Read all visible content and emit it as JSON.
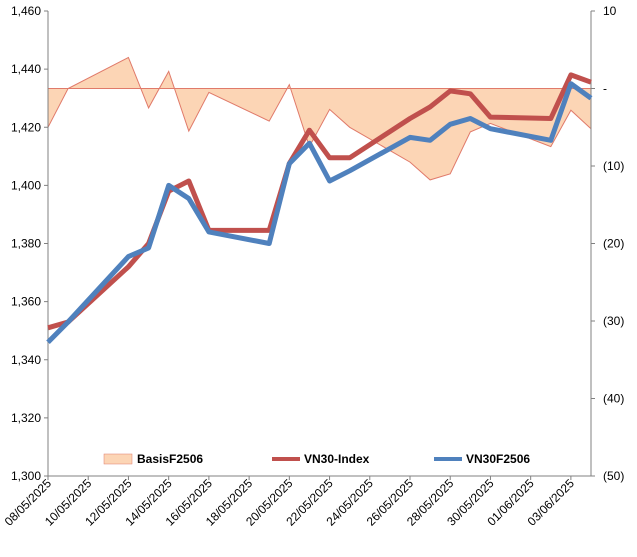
{
  "chart_data": {
    "type": "line",
    "title": "",
    "grid": false,
    "legend_position": "bottom-inside",
    "x": [
      "08/05/2025",
      "09/05/2025",
      "12/05/2025",
      "13/05/2025",
      "14/05/2025",
      "15/05/2025",
      "16/05/2025",
      "19/05/2025",
      "20/05/2025",
      "21/05/2025",
      "22/05/2025",
      "23/05/2025",
      "26/05/2025",
      "27/05/2025",
      "28/05/2025",
      "29/05/2025",
      "30/05/2025",
      "02/06/2025",
      "03/06/2025",
      "04/06/2025"
    ],
    "x_tick_labels": [
      "08/05/2025",
      "10/05/2025",
      "12/05/2025",
      "14/05/2025",
      "16/05/2025",
      "18/05/2025",
      "20/05/2025",
      "22/05/2025",
      "24/05/2025",
      "26/05/2025",
      "28/05/2025",
      "30/05/2025",
      "01/06/2025",
      "03/06/2025"
    ],
    "x_range": [
      "08/05/2025",
      "04/06/2025"
    ],
    "y_left": {
      "ylim": [
        1300,
        1460
      ],
      "ticks": [
        "1,300",
        "1,320",
        "1,340",
        "1,360",
        "1,380",
        "1,400",
        "1,420",
        "1,440",
        "1,460"
      ]
    },
    "y_right": {
      "ylim": [
        -50,
        10
      ],
      "ticks": [
        "(50)",
        "(40)",
        "(30)",
        "(20)",
        "(10)",
        "-",
        "10"
      ]
    },
    "series": [
      {
        "name": "BasisF2506",
        "type": "area",
        "axis": "right",
        "color_fill": "#FCD5B5",
        "color_line": "#E07A6A",
        "values": [
          -5.0,
          0.0,
          4.0,
          -2.5,
          2.2,
          -5.5,
          -0.5,
          -4.2,
          0.5,
          -7.5,
          -2.7,
          -5.0,
          -9.5,
          -11.8,
          -11.0,
          -5.6,
          -4.5,
          -7.5,
          -2.8,
          -5.2
        ]
      },
      {
        "name": "VN30-Index",
        "type": "line",
        "axis": "left",
        "color": "#C0504D",
        "values": [
          1351,
          1353,
          1372,
          1380,
          1398,
          1401.5,
          1384.5,
          1384.5,
          1407.5,
          1419,
          1409.5,
          1409.5,
          1423,
          1427,
          1432.5,
          1431.5,
          1423.5,
          1423,
          1438,
          1435.5
        ]
      },
      {
        "name": "VN30F2506",
        "type": "line",
        "axis": "left",
        "color": "#4F81BD",
        "values": [
          1346,
          1353,
          1375.5,
          1378.5,
          1400,
          1395.5,
          1384,
          1380,
          1407.5,
          1414.5,
          1401.5,
          1405,
          1416.5,
          1415.5,
          1421,
          1423,
          1419.5,
          1415.5,
          1435,
          1430
        ]
      }
    ]
  }
}
